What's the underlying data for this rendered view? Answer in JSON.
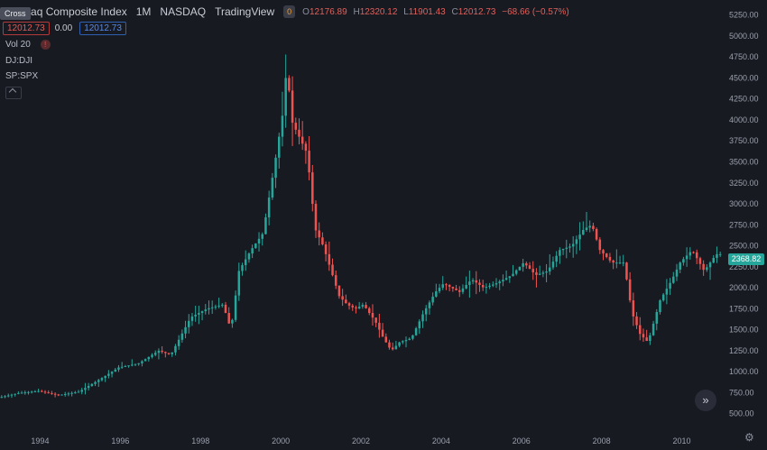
{
  "header": {
    "symbol_title": "Nasdaq Composite Index",
    "interval": "1M",
    "exchange": "NASDAQ",
    "source": "TradingView",
    "badge": "0",
    "cross_label": "Cross",
    "ohlc": {
      "open_key": "O",
      "open": "12176.89",
      "high_key": "H",
      "high": "12320.12",
      "low_key": "L",
      "low": "11901.43",
      "close_key": "C",
      "close": "12012.73",
      "change": "−68.66 (−0.57%)"
    },
    "bid": "12012.73",
    "spread": "0.00",
    "ask": "12012.73"
  },
  "indicators": [
    {
      "label": "Vol 20",
      "warn": "!"
    },
    {
      "label": "DJ:DJI"
    },
    {
      "label": "SP:SPX"
    }
  ],
  "price_tag": "2368.82",
  "ff_icon": "»",
  "settings_icon": "⚙",
  "colors": {
    "up": "#26a69a",
    "down": "#ef5350",
    "background": "#181a22",
    "text": "#b8bcc6",
    "price_tag": "#26a69a"
  },
  "chart_data": {
    "type": "candlestick",
    "title": "Nasdaq Composite Index",
    "xlabel": "",
    "ylabel": "",
    "ylim": [
      400,
      5300
    ],
    "xlim": [
      1993.0,
      2011.0
    ],
    "y_ticks": [
      "500.00",
      "750.00",
      "1000.00",
      "1250.00",
      "1500.00",
      "1750.00",
      "2000.00",
      "2250.00",
      "2500.00",
      "2750.00",
      "3000.00",
      "3250.00",
      "3500.00",
      "3750.00",
      "4000.00",
      "4250.00",
      "4500.00",
      "4750.00",
      "5000.00",
      "5250.00"
    ],
    "x_ticks": [
      "1994",
      "1996",
      "1998",
      "2000",
      "2002",
      "2004",
      "2006",
      "2008",
      "2010"
    ],
    "grid": false,
    "series": [
      {
        "points": [
          [
            1993.0,
            690
          ],
          [
            1993.5,
            745
          ],
          [
            1994.0,
            770
          ],
          [
            1994.5,
            720
          ],
          [
            1995.0,
            760
          ],
          [
            1995.5,
            900
          ],
          [
            1996.0,
            1050
          ],
          [
            1996.5,
            1100
          ],
          [
            1997.0,
            1250
          ],
          [
            1997.3,
            1200
          ],
          [
            1997.8,
            1650
          ],
          [
            1998.2,
            1750
          ],
          [
            1998.6,
            1800
          ],
          [
            1998.8,
            1500
          ],
          [
            1999.0,
            2200
          ],
          [
            1999.3,
            2450
          ],
          [
            1999.6,
            2650
          ],
          [
            1999.9,
            3500
          ],
          [
            2000.1,
            4100
          ],
          [
            2000.2,
            4700
          ],
          [
            2000.3,
            4000
          ],
          [
            2000.5,
            3800
          ],
          [
            2000.7,
            3600
          ],
          [
            2000.9,
            2700
          ],
          [
            2001.1,
            2500
          ],
          [
            2001.3,
            2200
          ],
          [
            2001.5,
            1900
          ],
          [
            2001.7,
            1800
          ],
          [
            2001.9,
            1750
          ],
          [
            2002.1,
            1800
          ],
          [
            2002.4,
            1600
          ],
          [
            2002.6,
            1400
          ],
          [
            2002.8,
            1250
          ],
          [
            2003.0,
            1350
          ],
          [
            2003.3,
            1400
          ],
          [
            2003.6,
            1700
          ],
          [
            2003.9,
            1950
          ],
          [
            2004.1,
            2050
          ],
          [
            2004.5,
            1950
          ],
          [
            2004.8,
            2100
          ],
          [
            2005.1,
            2000
          ],
          [
            2005.4,
            2050
          ],
          [
            2005.8,
            2150
          ],
          [
            2006.1,
            2300
          ],
          [
            2006.4,
            2150
          ],
          [
            2006.7,
            2200
          ],
          [
            2007.0,
            2450
          ],
          [
            2007.3,
            2500
          ],
          [
            2007.6,
            2700
          ],
          [
            2007.8,
            2750
          ],
          [
            2008.0,
            2450
          ],
          [
            2008.3,
            2300
          ],
          [
            2008.6,
            2300
          ],
          [
            2008.8,
            1700
          ],
          [
            2009.0,
            1450
          ],
          [
            2009.2,
            1350
          ],
          [
            2009.5,
            1850
          ],
          [
            2009.8,
            2100
          ],
          [
            2010.0,
            2300
          ],
          [
            2010.3,
            2450
          ],
          [
            2010.6,
            2200
          ],
          [
            2010.9,
            2400
          ]
        ]
      }
    ]
  }
}
